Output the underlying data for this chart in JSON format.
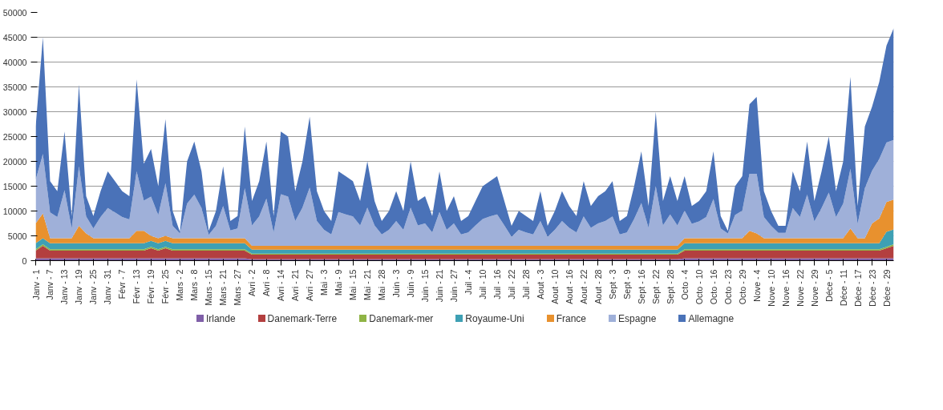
{
  "chart_data": {
    "type": "area",
    "stacked": true,
    "categories": [
      "Janv - 1",
      null,
      "Janv - 7",
      null,
      "Janv - 13",
      null,
      "Janv - 19",
      null,
      "Janv - 25",
      null,
      "Janv - 31",
      null,
      "Févr - 7",
      null,
      "Févr - 13",
      null,
      "Févr - 19",
      null,
      "Févr - 25",
      null,
      "Mars - 2",
      null,
      "Mars - 8",
      null,
      "Mars - 15",
      null,
      "Mars - 21",
      null,
      "Mars - 27",
      null,
      "Avri - 2",
      null,
      "Avri - 8",
      null,
      "Avri - 14",
      null,
      "Avri - 21",
      null,
      "Avri - 27",
      null,
      "Mai - 3",
      null,
      "Mai - 9",
      null,
      "Mai - 15",
      null,
      "Mai - 21",
      null,
      "Mai - 28",
      null,
      "Juin - 3",
      null,
      "Juin - 9",
      null,
      "Juin - 15",
      null,
      "Juin - 21",
      null,
      "Juin - 27",
      null,
      "Juil - 4",
      null,
      "Juil - 10",
      null,
      "Juil - 16",
      null,
      "Juil - 22",
      null,
      "Juil - 28",
      null,
      "Aout - 3",
      null,
      "Aout - 10",
      null,
      "Aout - 16",
      null,
      "Aout - 22",
      null,
      "Aout - 28",
      null,
      "Sept - 3",
      null,
      "Sept - 9",
      null,
      "Sept - 16",
      null,
      "Sept - 22",
      null,
      "Sept - 28",
      null,
      "Octo - 4",
      null,
      "Octo - 10",
      null,
      "Octo - 16",
      null,
      "Octo - 23",
      null,
      "Octo - 29",
      null,
      "Nove - 4",
      null,
      "Nove - 10",
      null,
      "Nove - 16",
      null,
      "Nove - 22",
      null,
      "Nove - 29",
      null,
      "Déce - 5",
      null,
      "Déce - 11",
      null,
      "Déce - 17",
      null,
      "Déce - 23",
      null,
      "Déce - 29",
      null
    ],
    "series": [
      {
        "name": "Irlande",
        "color": "#7f5fa8",
        "values": [
          500,
          500,
          500,
          500,
          500,
          500,
          500,
          500,
          500,
          500,
          500,
          500,
          500,
          500,
          500,
          500,
          500,
          500,
          500,
          500,
          500,
          500,
          500,
          500,
          500,
          500,
          500,
          500,
          500,
          500,
          300,
          300,
          300,
          300,
          300,
          300,
          300,
          300,
          300,
          300,
          300,
          300,
          300,
          300,
          300,
          300,
          300,
          300,
          300,
          300,
          300,
          300,
          300,
          300,
          300,
          300,
          300,
          300,
          300,
          300,
          300,
          300,
          300,
          300,
          300,
          300,
          300,
          300,
          300,
          300,
          300,
          300,
          300,
          300,
          300,
          300,
          300,
          300,
          300,
          300,
          300,
          300,
          300,
          300,
          300,
          300,
          300,
          300,
          300,
          300,
          500,
          500,
          500,
          500,
          500,
          500,
          500,
          500,
          500,
          500,
          500,
          500,
          500,
          500,
          500,
          500,
          500,
          500,
          500,
          500,
          500,
          500,
          500,
          500,
          500,
          500,
          500,
          500,
          500,
          500
        ]
      },
      {
        "name": "Danemark-Terre",
        "color": "#b33f3f",
        "values": [
          1500,
          2500,
          1500,
          1500,
          1500,
          1500,
          1500,
          1500,
          1500,
          1500,
          1500,
          1500,
          1500,
          1500,
          1500,
          1500,
          2000,
          1500,
          2000,
          1500,
          1500,
          1500,
          1500,
          1500,
          1500,
          1500,
          1500,
          1500,
          1500,
          1500,
          900,
          900,
          900,
          900,
          900,
          900,
          900,
          900,
          900,
          900,
          900,
          900,
          900,
          900,
          900,
          900,
          900,
          900,
          900,
          900,
          900,
          900,
          900,
          900,
          900,
          900,
          900,
          900,
          900,
          900,
          900,
          900,
          900,
          900,
          900,
          900,
          900,
          900,
          900,
          900,
          900,
          900,
          900,
          900,
          900,
          900,
          900,
          900,
          900,
          900,
          900,
          900,
          900,
          900,
          900,
          900,
          900,
          900,
          900,
          900,
          1500,
          1500,
          1500,
          1500,
          1500,
          1500,
          1500,
          1500,
          1500,
          1500,
          1500,
          1500,
          1500,
          1500,
          1500,
          1500,
          1500,
          1500,
          1500,
          1500,
          1500,
          1500,
          1500,
          1500,
          1500,
          1500,
          1500,
          1500,
          2000,
          2500
        ]
      },
      {
        "name": "Danemark-mer",
        "color": "#8fb445",
        "values": [
          300,
          300,
          300,
          300,
          300,
          300,
          300,
          300,
          300,
          300,
          300,
          300,
          300,
          300,
          300,
          300,
          300,
          300,
          300,
          300,
          300,
          300,
          300,
          300,
          300,
          300,
          300,
          300,
          300,
          300,
          200,
          200,
          200,
          200,
          200,
          200,
          200,
          200,
          200,
          200,
          200,
          200,
          200,
          200,
          200,
          200,
          200,
          200,
          200,
          200,
          200,
          200,
          200,
          200,
          200,
          200,
          200,
          200,
          200,
          200,
          200,
          200,
          200,
          200,
          200,
          200,
          200,
          200,
          200,
          200,
          200,
          200,
          200,
          200,
          200,
          200,
          200,
          200,
          200,
          200,
          200,
          200,
          200,
          200,
          200,
          200,
          200,
          200,
          200,
          200,
          300,
          300,
          300,
          300,
          300,
          300,
          300,
          300,
          300,
          300,
          300,
          300,
          300,
          300,
          300,
          300,
          300,
          300,
          300,
          300,
          300,
          300,
          300,
          300,
          300,
          300,
          300,
          300,
          300,
          300
        ]
      },
      {
        "name": "Royaume-Uni",
        "color": "#3ea0b4",
        "values": [
          1200,
          1200,
          1200,
          1200,
          1200,
          1200,
          1200,
          1200,
          1200,
          1200,
          1200,
          1200,
          1200,
          1200,
          1200,
          1200,
          1200,
          1200,
          1200,
          1200,
          1200,
          1200,
          1200,
          1200,
          1200,
          1200,
          1200,
          1200,
          1200,
          1200,
          800,
          800,
          800,
          800,
          800,
          800,
          800,
          800,
          800,
          800,
          800,
          800,
          800,
          800,
          800,
          800,
          800,
          800,
          800,
          800,
          800,
          800,
          800,
          800,
          800,
          800,
          800,
          800,
          800,
          800,
          800,
          800,
          800,
          800,
          800,
          800,
          800,
          800,
          800,
          800,
          800,
          800,
          800,
          800,
          800,
          800,
          800,
          800,
          800,
          800,
          800,
          800,
          800,
          800,
          800,
          800,
          800,
          800,
          800,
          800,
          1200,
          1200,
          1200,
          1200,
          1200,
          1200,
          1200,
          1200,
          1200,
          1200,
          1200,
          1200,
          1200,
          1200,
          1200,
          1200,
          1200,
          1200,
          1200,
          1200,
          1200,
          1200,
          1200,
          1200,
          1200,
          1200,
          1200,
          1200,
          3000,
          3000
        ]
      },
      {
        "name": "France",
        "color": "#e8912e",
        "values": [
          4000,
          5000,
          1000,
          1000,
          1000,
          1000,
          3500,
          2000,
          1000,
          1000,
          1000,
          1000,
          1000,
          1000,
          2500,
          2500,
          1000,
          1000,
          1000,
          1000,
          1000,
          1000,
          1000,
          1000,
          1000,
          1000,
          1000,
          1000,
          1000,
          1000,
          800,
          800,
          800,
          800,
          800,
          800,
          800,
          800,
          800,
          800,
          800,
          800,
          800,
          800,
          800,
          800,
          800,
          800,
          800,
          800,
          800,
          800,
          800,
          800,
          800,
          800,
          800,
          800,
          800,
          800,
          800,
          800,
          800,
          800,
          800,
          800,
          800,
          800,
          800,
          800,
          800,
          800,
          800,
          800,
          800,
          800,
          800,
          800,
          800,
          800,
          800,
          800,
          800,
          800,
          800,
          800,
          800,
          800,
          800,
          800,
          1000,
          1000,
          1000,
          1000,
          1000,
          1000,
          1000,
          1000,
          1000,
          2500,
          2000,
          1000,
          1000,
          1000,
          1000,
          1000,
          1000,
          1000,
          1000,
          1000,
          1000,
          1000,
          1000,
          3000,
          1000,
          1000,
          4000,
          5000,
          6000,
          6000
        ]
      },
      {
        "name": "Espagne",
        "color": "#9fb0d9",
        "values": [
          8800,
          12000,
          5200,
          4300,
          9700,
          2000,
          12000,
          3400,
          2000,
          4300,
          6100,
          5200,
          4300,
          3800,
          12000,
          6100,
          7900,
          4700,
          10600,
          2500,
          1000,
          7000,
          8800,
          6100,
          700,
          2500,
          6500,
          1600,
          2000,
          10100,
          4100,
          5900,
          9500,
          2700,
          10400,
          9900,
          5000,
          7700,
          11700,
          5000,
          3200,
          2300,
          6800,
          6300,
          5900,
          4100,
          7700,
          4100,
          2300,
          3200,
          5000,
          3200,
          7700,
          4100,
          4500,
          2700,
          6800,
          3200,
          4500,
          2300,
          2700,
          4100,
          5400,
          5900,
          6300,
          4100,
          1800,
          3200,
          2700,
          2300,
          5000,
          1800,
          3200,
          5000,
          3600,
          2700,
          5900,
          3600,
          4500,
          5000,
          5900,
          2300,
          2700,
          5400,
          8600,
          3600,
          12000,
          4100,
          6300,
          4100,
          5600,
          2900,
          3400,
          4300,
          7900,
          2000,
          1000,
          4700,
          5600,
          11500,
          12000,
          4300,
          2500,
          1100,
          1100,
          6100,
          4300,
          8800,
          3400,
          6100,
          9200,
          4300,
          7000,
          12000,
          2900,
          10100,
          10600,
          12000,
          12000,
          12000
        ]
      },
      {
        "name": "Allemagne",
        "color": "#4a72b8",
        "values": [
          10700,
          23500,
          6300,
          5200,
          11800,
          2500,
          16500,
          4100,
          2500,
          5200,
          7400,
          6300,
          5200,
          4700,
          18500,
          7400,
          9600,
          5800,
          12900,
          3000,
          300,
          8500,
          10700,
          7400,
          800,
          3000,
          8000,
          1900,
          2500,
          12400,
          4900,
          7100,
          11500,
          3300,
          12600,
          12100,
          6000,
          9300,
          14300,
          6000,
          3800,
          2700,
          8200,
          7700,
          7100,
          4900,
          9300,
          4900,
          2700,
          3800,
          6000,
          3800,
          9300,
          4900,
          5500,
          3300,
          8200,
          3800,
          5500,
          2700,
          3300,
          4900,
          6600,
          7100,
          7700,
          4900,
          2200,
          3800,
          3300,
          2700,
          6000,
          2200,
          3800,
          6000,
          4400,
          3300,
          7100,
          4400,
          5500,
          6000,
          7100,
          2700,
          3300,
          6600,
          10400,
          4400,
          15000,
          4900,
          7700,
          4900,
          6900,
          3600,
          4100,
          5200,
          9600,
          2500,
          500,
          5800,
          6900,
          14000,
          15500,
          5200,
          3000,
          1400,
          1400,
          7400,
          5200,
          10700,
          4100,
          7400,
          11300,
          5200,
          8500,
          18500,
          3600,
          12400,
          12900,
          15500,
          19500,
          22500
        ]
      }
    ],
    "ylim": [
      0,
      50000
    ],
    "yticks": [
      0,
      5000,
      10000,
      15000,
      20000,
      25000,
      30000,
      35000,
      40000,
      45000,
      50000
    ],
    "grid": "y",
    "legend": "bottom"
  }
}
